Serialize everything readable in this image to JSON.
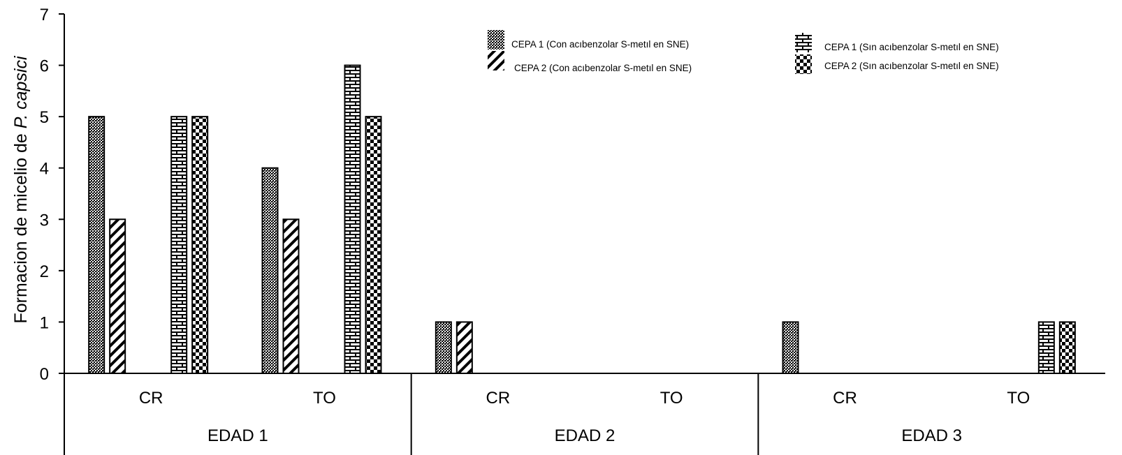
{
  "chart_data": {
    "type": "bar",
    "ylabel_main": "Formacion de micelio de ",
    "ylabel_italic": "P. capsici",
    "ylim": [
      0,
      7
    ],
    "yticks": [
      0,
      1,
      2,
      3,
      4,
      5,
      6,
      7
    ],
    "groups": [
      {
        "label": "EDAD 1",
        "categories": [
          "CR",
          "TO"
        ]
      },
      {
        "label": "EDAD 2",
        "categories": [
          "CR",
          "TO"
        ]
      },
      {
        "label": "EDAD 3",
        "categories": [
          "CR",
          "TO"
        ]
      }
    ],
    "series": [
      {
        "name": "CEPA 1 (Con acıbenzolar S-metıl en SNE)",
        "pattern": "dots",
        "values": [
          5,
          4,
          1,
          0,
          1,
          0
        ]
      },
      {
        "name": "CEPA 2 (Con acıbenzolar S-metıl en SNE)",
        "pattern": "hatch",
        "values": [
          3,
          3,
          1,
          0,
          0,
          0
        ]
      },
      {
        "name": "CEPA 1 (Sın acıbenzolar S-metıl en SNE)",
        "pattern": "brick",
        "values": [
          5,
          6,
          0,
          0,
          0,
          1
        ]
      },
      {
        "name": "CEPA 2 (Sın acıbenzolar S-metıl en SNE)",
        "pattern": "checker",
        "values": [
          5,
          5,
          0,
          0,
          0,
          1
        ]
      }
    ],
    "legend_position": "top-right",
    "grid": false
  }
}
